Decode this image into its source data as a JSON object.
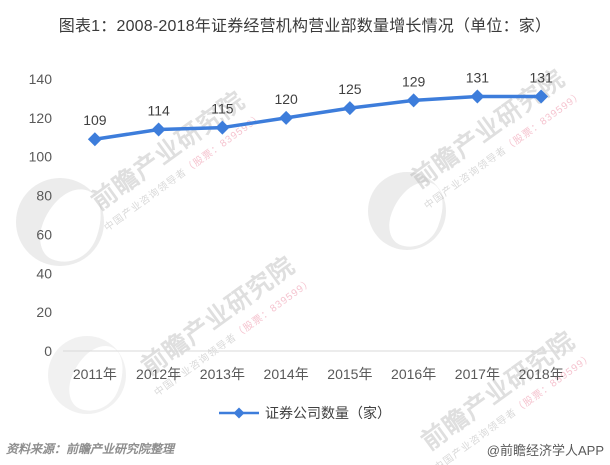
{
  "title": "图表1：2008-2018年证券经营机构营业部数量增长情况（单位：家）",
  "chart_data": {
    "type": "line",
    "categories": [
      "2011年",
      "2012年",
      "2013年",
      "2014年",
      "2015年",
      "2016年",
      "2017年",
      "2018年"
    ],
    "series": [
      {
        "name": "证券公司数量（家）",
        "values": [
          109,
          114,
          115,
          120,
          125,
          129,
          131,
          131
        ]
      }
    ],
    "title": "图表1：2008-2018年证券经营机构营业部数量增长情况（单位：家）",
    "xlabel": "",
    "ylabel": "",
    "ylim": [
      0,
      140
    ],
    "ytick_step": 20,
    "grid": false,
    "legend_position": "bottom-center",
    "data_labels": true,
    "marker": "diamond",
    "line_color": "#3D7DDB",
    "axis_color": "#D9D9D9",
    "tick_label_color": "#595959",
    "data_label_color": "#404040"
  },
  "legend": {
    "label": "证券公司数量（家）"
  },
  "footer": {
    "source": "资料来源：前瞻产业研究院整理",
    "brand": "@前瞻经济学人APP"
  },
  "watermark": {
    "main": "前瞻产业研究院",
    "sub_gray": "中国产业咨询领导者",
    "sub_pink": "（股票：839599）"
  }
}
